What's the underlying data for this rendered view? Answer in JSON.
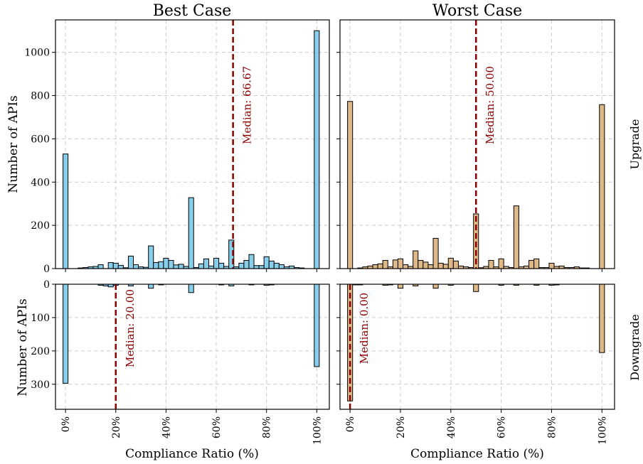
{
  "colors": {
    "best_bar": "#87ceeb",
    "worst_bar": "#deb887",
    "median_line": "#8b0000",
    "bar_edge": "#000000",
    "grid": "#cccccc"
  },
  "row_labels": [
    "Upgrade",
    "Downgrade"
  ],
  "chart_data": [
    {
      "type": "bar",
      "title": "Best Case",
      "row": "Upgrade",
      "xlabel": "",
      "ylabel": "Number of APIs",
      "xlim": [
        -4,
        105
      ],
      "ylim": [
        0,
        1150
      ],
      "yticks": [
        0,
        200,
        400,
        600,
        800,
        1000
      ],
      "bar_width": 2,
      "color": "#87ceeb",
      "median": 66.67,
      "median_label": "Median: 66.67",
      "x": [
        0,
        6,
        8,
        10,
        12,
        14,
        18,
        20,
        22,
        24,
        26,
        28,
        30,
        32,
        34,
        36,
        38,
        40,
        42,
        44,
        46,
        48,
        50,
        52,
        54,
        56,
        58,
        60,
        62,
        64,
        66,
        68,
        70,
        72,
        74,
        76,
        78,
        80,
        82,
        84,
        86,
        88,
        90,
        92,
        94,
        100
      ],
      "values": [
        530,
        3,
        5,
        8,
        10,
        18,
        28,
        25,
        15,
        4,
        58,
        18,
        8,
        6,
        105,
        28,
        32,
        48,
        38,
        17,
        20,
        10,
        328,
        5,
        22,
        45,
        12,
        48,
        25,
        10,
        132,
        8,
        25,
        38,
        65,
        14,
        14,
        55,
        35,
        25,
        18,
        8,
        12,
        5,
        3,
        1100
      ]
    },
    {
      "type": "bar",
      "title": "Worst Case",
      "row": "Upgrade",
      "xlabel": "",
      "ylabel": "",
      "xlim": [
        -4,
        105
      ],
      "ylim": [
        0,
        1150
      ],
      "yticks": [
        0,
        200,
        400,
        600,
        800,
        1000
      ],
      "bar_width": 2,
      "color": "#deb887",
      "median": 50.0,
      "median_label": "Median: 50.00",
      "x": [
        0,
        4,
        6,
        8,
        10,
        12,
        14,
        16,
        18,
        20,
        22,
        24,
        26,
        28,
        30,
        32,
        34,
        36,
        38,
        40,
        42,
        44,
        46,
        48,
        50,
        52,
        54,
        56,
        58,
        60,
        62,
        64,
        66,
        68,
        70,
        72,
        74,
        76,
        78,
        80,
        82,
        84,
        86,
        88,
        90,
        92,
        94,
        100
      ],
      "values": [
        773,
        3,
        8,
        12,
        18,
        22,
        38,
        8,
        40,
        45,
        18,
        10,
        82,
        38,
        30,
        18,
        140,
        25,
        20,
        48,
        35,
        12,
        8,
        5,
        253,
        4,
        10,
        38,
        8,
        45,
        10,
        5,
        290,
        8,
        12,
        38,
        45,
        5,
        5,
        25,
        10,
        12,
        5,
        5,
        8,
        3,
        3,
        758
      ]
    },
    {
      "type": "bar",
      "title": "",
      "row": "Downgrade",
      "xlabel": "Compliance Ratio (%)",
      "ylabel": "Number of APIs",
      "inverted_y": true,
      "xlim": [
        -4,
        105
      ],
      "ylim": [
        0,
        375
      ],
      "yticks": [
        0,
        100,
        200,
        300
      ],
      "xticks": [
        0,
        20,
        40,
        60,
        80,
        100
      ],
      "xtick_labels": [
        "0%",
        "20%",
        "40%",
        "60%",
        "80%",
        "100%"
      ],
      "bar_width": 2,
      "color": "#87ceeb",
      "median": 20.0,
      "median_label": "Median: 20.00",
      "x": [
        0,
        14,
        16,
        18,
        20,
        26,
        34,
        38,
        50,
        62,
        66,
        74,
        80,
        82,
        100
      ],
      "values": [
        297,
        3,
        5,
        8,
        3,
        5,
        12,
        2,
        25,
        2,
        5,
        2,
        3,
        2,
        247
      ]
    },
    {
      "type": "bar",
      "title": "",
      "row": "Downgrade",
      "xlabel": "Compliance Ratio (%)",
      "ylabel": "",
      "inverted_y": true,
      "xlim": [
        -4,
        105
      ],
      "ylim": [
        0,
        375
      ],
      "yticks": [
        0,
        100,
        200,
        300
      ],
      "xticks": [
        0,
        20,
        40,
        60,
        80,
        100
      ],
      "xtick_labels": [
        "0%",
        "20%",
        "40%",
        "60%",
        "80%",
        "100%"
      ],
      "bar_width": 2,
      "color": "#deb887",
      "median": 0.0,
      "median_label": "Median: 0.00",
      "x": [
        0,
        2,
        4,
        14,
        16,
        20,
        26,
        34,
        40,
        50,
        60,
        66,
        74,
        80,
        82,
        100
      ],
      "values": [
        350,
        2,
        2,
        3,
        2,
        12,
        5,
        12,
        3,
        22,
        3,
        3,
        3,
        3,
        2,
        205
      ]
    }
  ]
}
